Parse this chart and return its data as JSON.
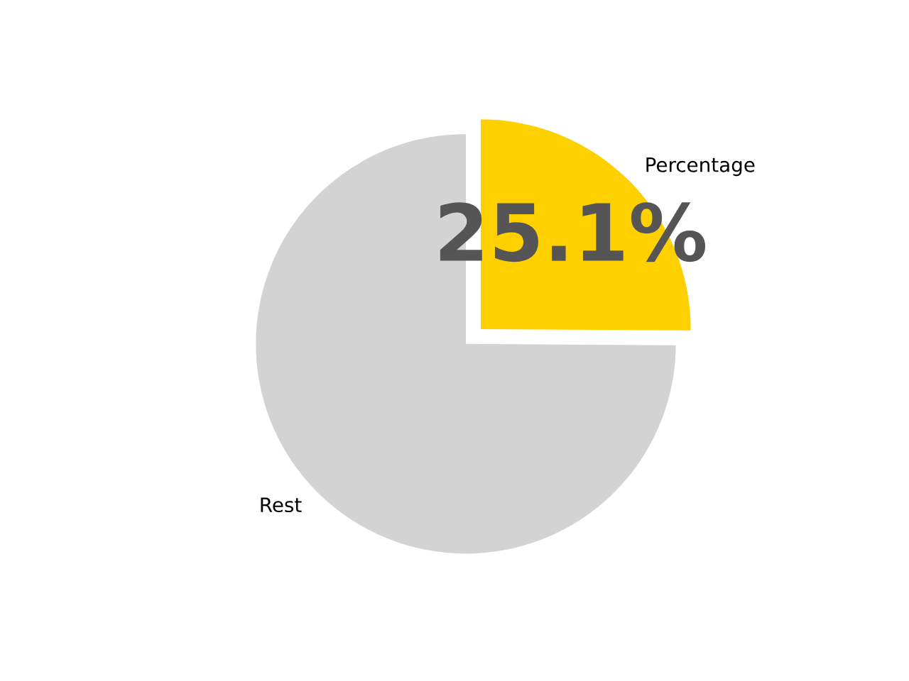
{
  "chart_data": {
    "type": "pie",
    "categories": [
      "Percentage",
      "Rest"
    ],
    "values": [
      25.1,
      74.9
    ],
    "colors": [
      "#ffd000",
      "#d3d3d3"
    ],
    "value_labels": [
      "25.1%",
      null
    ],
    "legend": false
  }
}
